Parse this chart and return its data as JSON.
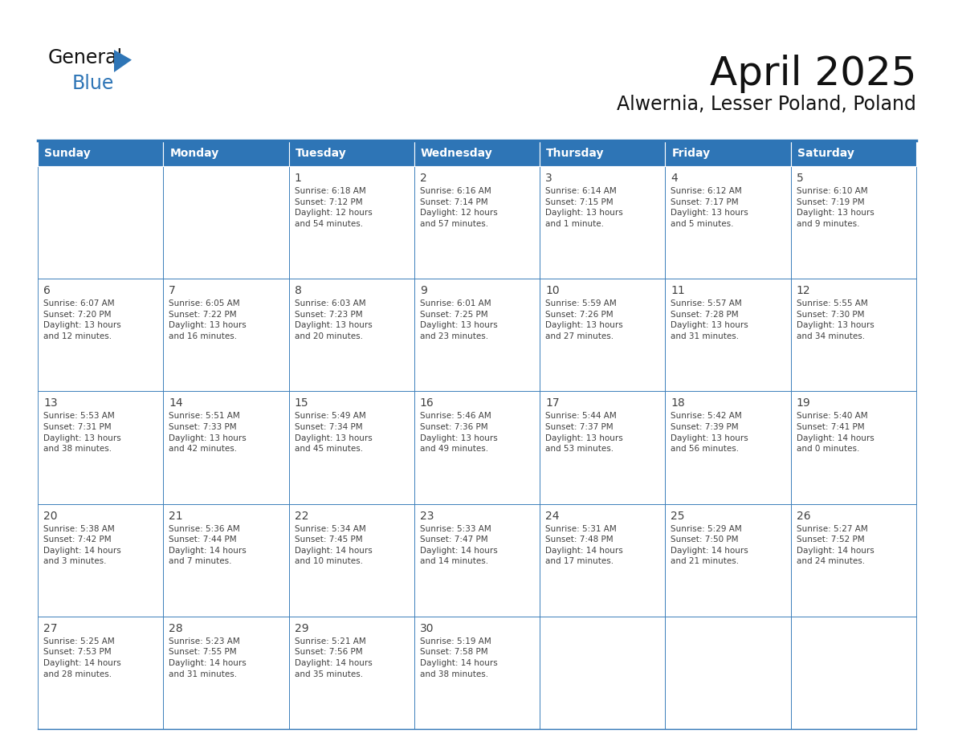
{
  "title": "April 2025",
  "subtitle": "Alwernia, Lesser Poland, Poland",
  "header_color": "#2E75B6",
  "header_text_color": "#FFFFFF",
  "border_color": "#2E75B6",
  "text_color": "#404040",
  "day_number_color": "#404040",
  "day_headers": [
    "Sunday",
    "Monday",
    "Tuesday",
    "Wednesday",
    "Thursday",
    "Friday",
    "Saturday"
  ],
  "weeks": [
    [
      {
        "day": "",
        "text": ""
      },
      {
        "day": "",
        "text": ""
      },
      {
        "day": "1",
        "text": "Sunrise: 6:18 AM\nSunset: 7:12 PM\nDaylight: 12 hours\nand 54 minutes."
      },
      {
        "day": "2",
        "text": "Sunrise: 6:16 AM\nSunset: 7:14 PM\nDaylight: 12 hours\nand 57 minutes."
      },
      {
        "day": "3",
        "text": "Sunrise: 6:14 AM\nSunset: 7:15 PM\nDaylight: 13 hours\nand 1 minute."
      },
      {
        "day": "4",
        "text": "Sunrise: 6:12 AM\nSunset: 7:17 PM\nDaylight: 13 hours\nand 5 minutes."
      },
      {
        "day": "5",
        "text": "Sunrise: 6:10 AM\nSunset: 7:19 PM\nDaylight: 13 hours\nand 9 minutes."
      }
    ],
    [
      {
        "day": "6",
        "text": "Sunrise: 6:07 AM\nSunset: 7:20 PM\nDaylight: 13 hours\nand 12 minutes."
      },
      {
        "day": "7",
        "text": "Sunrise: 6:05 AM\nSunset: 7:22 PM\nDaylight: 13 hours\nand 16 minutes."
      },
      {
        "day": "8",
        "text": "Sunrise: 6:03 AM\nSunset: 7:23 PM\nDaylight: 13 hours\nand 20 minutes."
      },
      {
        "day": "9",
        "text": "Sunrise: 6:01 AM\nSunset: 7:25 PM\nDaylight: 13 hours\nand 23 minutes."
      },
      {
        "day": "10",
        "text": "Sunrise: 5:59 AM\nSunset: 7:26 PM\nDaylight: 13 hours\nand 27 minutes."
      },
      {
        "day": "11",
        "text": "Sunrise: 5:57 AM\nSunset: 7:28 PM\nDaylight: 13 hours\nand 31 minutes."
      },
      {
        "day": "12",
        "text": "Sunrise: 5:55 AM\nSunset: 7:30 PM\nDaylight: 13 hours\nand 34 minutes."
      }
    ],
    [
      {
        "day": "13",
        "text": "Sunrise: 5:53 AM\nSunset: 7:31 PM\nDaylight: 13 hours\nand 38 minutes."
      },
      {
        "day": "14",
        "text": "Sunrise: 5:51 AM\nSunset: 7:33 PM\nDaylight: 13 hours\nand 42 minutes."
      },
      {
        "day": "15",
        "text": "Sunrise: 5:49 AM\nSunset: 7:34 PM\nDaylight: 13 hours\nand 45 minutes."
      },
      {
        "day": "16",
        "text": "Sunrise: 5:46 AM\nSunset: 7:36 PM\nDaylight: 13 hours\nand 49 minutes."
      },
      {
        "day": "17",
        "text": "Sunrise: 5:44 AM\nSunset: 7:37 PM\nDaylight: 13 hours\nand 53 minutes."
      },
      {
        "day": "18",
        "text": "Sunrise: 5:42 AM\nSunset: 7:39 PM\nDaylight: 13 hours\nand 56 minutes."
      },
      {
        "day": "19",
        "text": "Sunrise: 5:40 AM\nSunset: 7:41 PM\nDaylight: 14 hours\nand 0 minutes."
      }
    ],
    [
      {
        "day": "20",
        "text": "Sunrise: 5:38 AM\nSunset: 7:42 PM\nDaylight: 14 hours\nand 3 minutes."
      },
      {
        "day": "21",
        "text": "Sunrise: 5:36 AM\nSunset: 7:44 PM\nDaylight: 14 hours\nand 7 minutes."
      },
      {
        "day": "22",
        "text": "Sunrise: 5:34 AM\nSunset: 7:45 PM\nDaylight: 14 hours\nand 10 minutes."
      },
      {
        "day": "23",
        "text": "Sunrise: 5:33 AM\nSunset: 7:47 PM\nDaylight: 14 hours\nand 14 minutes."
      },
      {
        "day": "24",
        "text": "Sunrise: 5:31 AM\nSunset: 7:48 PM\nDaylight: 14 hours\nand 17 minutes."
      },
      {
        "day": "25",
        "text": "Sunrise: 5:29 AM\nSunset: 7:50 PM\nDaylight: 14 hours\nand 21 minutes."
      },
      {
        "day": "26",
        "text": "Sunrise: 5:27 AM\nSunset: 7:52 PM\nDaylight: 14 hours\nand 24 minutes."
      }
    ],
    [
      {
        "day": "27",
        "text": "Sunrise: 5:25 AM\nSunset: 7:53 PM\nDaylight: 14 hours\nand 28 minutes."
      },
      {
        "day": "28",
        "text": "Sunrise: 5:23 AM\nSunset: 7:55 PM\nDaylight: 14 hours\nand 31 minutes."
      },
      {
        "day": "29",
        "text": "Sunrise: 5:21 AM\nSunset: 7:56 PM\nDaylight: 14 hours\nand 35 minutes."
      },
      {
        "day": "30",
        "text": "Sunrise: 5:19 AM\nSunset: 7:58 PM\nDaylight: 14 hours\nand 38 minutes."
      },
      {
        "day": "",
        "text": ""
      },
      {
        "day": "",
        "text": ""
      },
      {
        "day": "",
        "text": ""
      }
    ]
  ],
  "fig_width": 11.88,
  "fig_height": 9.18,
  "title_fontsize": 36,
  "subtitle_fontsize": 17,
  "header_fontsize": 10,
  "day_num_fontsize": 10,
  "cell_text_fontsize": 7.5
}
